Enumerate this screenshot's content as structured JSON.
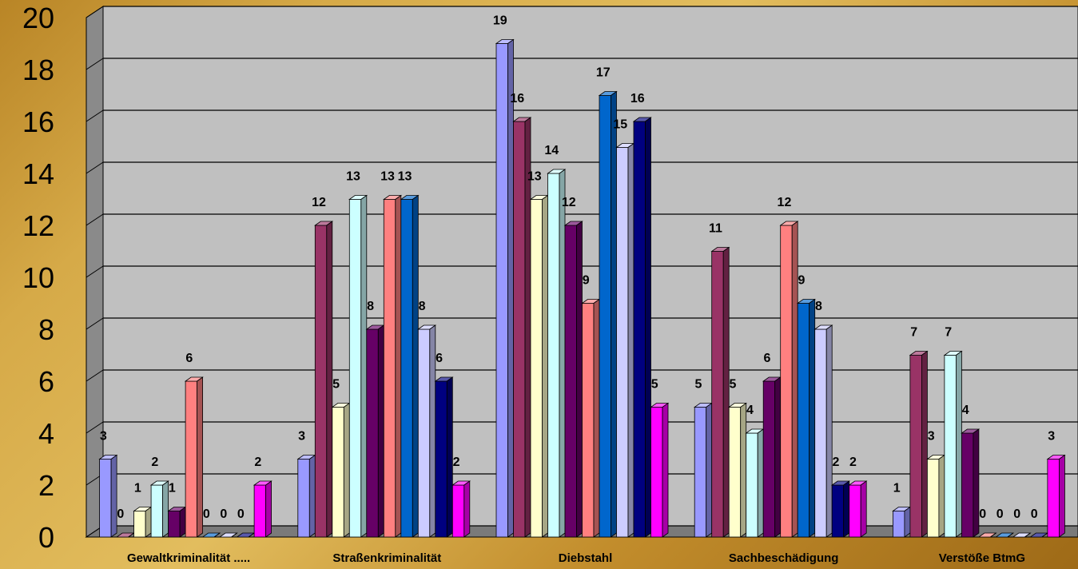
{
  "chart_data": {
    "type": "bar",
    "style": "3d-clustered",
    "categories": [
      "Gewaltkriminalität .....",
      "Straßenkriminalität",
      "Diebstahl",
      "Sachbeschädigung",
      "Verstöße  BtmG"
    ],
    "series": [
      {
        "values": [
          3,
          3,
          19,
          5,
          1
        ],
        "color": "#9999ff"
      },
      {
        "values": [
          0,
          12,
          16,
          11,
          7
        ],
        "color": "#993366"
      },
      {
        "values": [
          1,
          5,
          13,
          5,
          3
        ],
        "color": "#ffffcc"
      },
      {
        "values": [
          2,
          13,
          14,
          4,
          7
        ],
        "color": "#ccffff"
      },
      {
        "values": [
          1,
          8,
          12,
          6,
          4
        ],
        "color": "#660066"
      },
      {
        "values": [
          6,
          13,
          9,
          12,
          0
        ],
        "color": "#ff8080"
      },
      {
        "values": [
          0,
          13,
          17,
          9,
          0
        ],
        "color": "#0066cc"
      },
      {
        "values": [
          0,
          8,
          15,
          8,
          0
        ],
        "color": "#ccccff"
      },
      {
        "values": [
          0,
          6,
          16,
          2,
          0
        ],
        "color": "#000080"
      },
      {
        "values": [
          2,
          2,
          5,
          2,
          3
        ],
        "color": "#ff00ff"
      }
    ],
    "y_ticks": [
      "0",
      "2",
      "4",
      "6",
      "8",
      "10",
      "12",
      "14",
      "16",
      "18",
      "20"
    ],
    "ylim": [
      0,
      20
    ],
    "grid": true,
    "legend": "none",
    "data_labels": true,
    "plot_background": "#c0c0c0"
  }
}
